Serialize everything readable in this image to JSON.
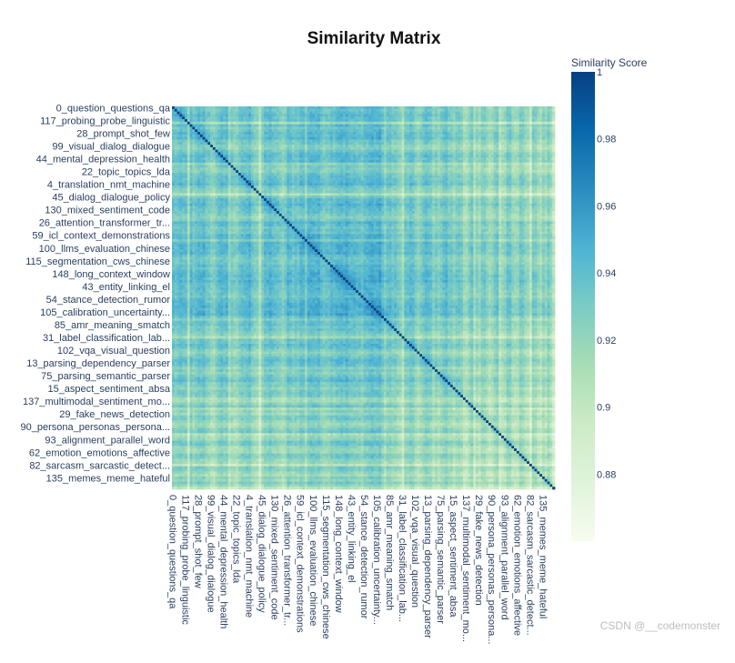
{
  "chart_data": {
    "type": "heatmap",
    "title": "Similarity Matrix",
    "colorbar": {
      "title": "Similarity Score",
      "range": [
        0.86,
        1
      ],
      "ticks": [
        {
          "value": 1,
          "label": "1"
        },
        {
          "value": 0.98,
          "label": "0.98"
        },
        {
          "value": 0.96,
          "label": "0.96"
        },
        {
          "value": 0.94,
          "label": "0.94"
        },
        {
          "value": 0.92,
          "label": "0.92"
        },
        {
          "value": 0.9,
          "label": "0.9"
        },
        {
          "value": 0.88,
          "label": "0.88"
        }
      ],
      "colorscale": [
        "#f7fcf0",
        "#e0f3db",
        "#ccebc5",
        "#a8ddb5",
        "#7bccc4",
        "#4eb3d3",
        "#2b8cbe",
        "#0868ac",
        "#084081"
      ]
    },
    "matrix_size": 150,
    "y_labels": [
      "0_question_questions_qa",
      "117_probing_probe_linguistic",
      "28_prompt_shot_few",
      "99_visual_dialog_dialogue",
      "44_mental_depression_health",
      "22_topic_topics_lda",
      "4_translation_nmt_machine",
      "45_dialog_dialogue_policy",
      "130_mixed_sentiment_code",
      "26_attention_transformer_tr...",
      "59_icl_context_demonstrations",
      "100_llms_evaluation_chinese",
      "115_segmentation_cws_chinese",
      "148_long_context_window",
      "43_entity_linking_el",
      "54_stance_detection_rumor",
      "105_calibration_uncertainty...",
      "85_amr_meaning_smatch",
      "31_label_classification_lab...",
      "102_vqa_visual_question",
      "13_parsing_dependency_parser",
      "75_parsing_semantic_parser",
      "15_aspect_sentiment_absa",
      "137_multimodal_sentiment_mo...",
      "29_fake_news_detection",
      "90_persona_personas_persona...",
      "93_alignment_parallel_word",
      "62_emotion_emotions_affective",
      "82_sarcasm_sarcastic_detect...",
      "135_memes_meme_hateful"
    ],
    "x_labels": [
      "0_question_questions_qa",
      "117_probing_probe_linguistic",
      "28_prompt_shot_few",
      "99_visual_dialog_dialogue",
      "44_mental_depression_health",
      "22_topic_topics_lda",
      "4_translation_nmt_machine",
      "45_dialog_dialogue_policy",
      "130_mixed_sentiment_code",
      "26_attention_transformer_tr...",
      "59_icl_context_demonstrations",
      "100_llms_evaluation_chinese",
      "115_segmentation_cws_chinese",
      "148_long_context_window",
      "43_entity_linking_el",
      "54_stance_detection_rumor",
      "105_calibration_uncertainty...",
      "85_amr_meaning_smatch",
      "31_label_classification_lab...",
      "102_vqa_visual_question",
      "13_parsing_dependency_parser",
      "75_parsing_semantic_parser",
      "15_aspect_sentiment_absa",
      "137_multimodal_sentiment_mo...",
      "29_fake_news_detection",
      "90_persona_personas_persona...",
      "93_alignment_parallel_word",
      "62_emotion_emotions_affective",
      "82_sarcasm_sarcastic_detect...",
      "135_memes_meme_hateful"
    ],
    "diagonal_value": 1,
    "typical_off_diagonal_range": [
      0.88,
      0.97
    ]
  },
  "watermark": "CSDN @__codemonster"
}
